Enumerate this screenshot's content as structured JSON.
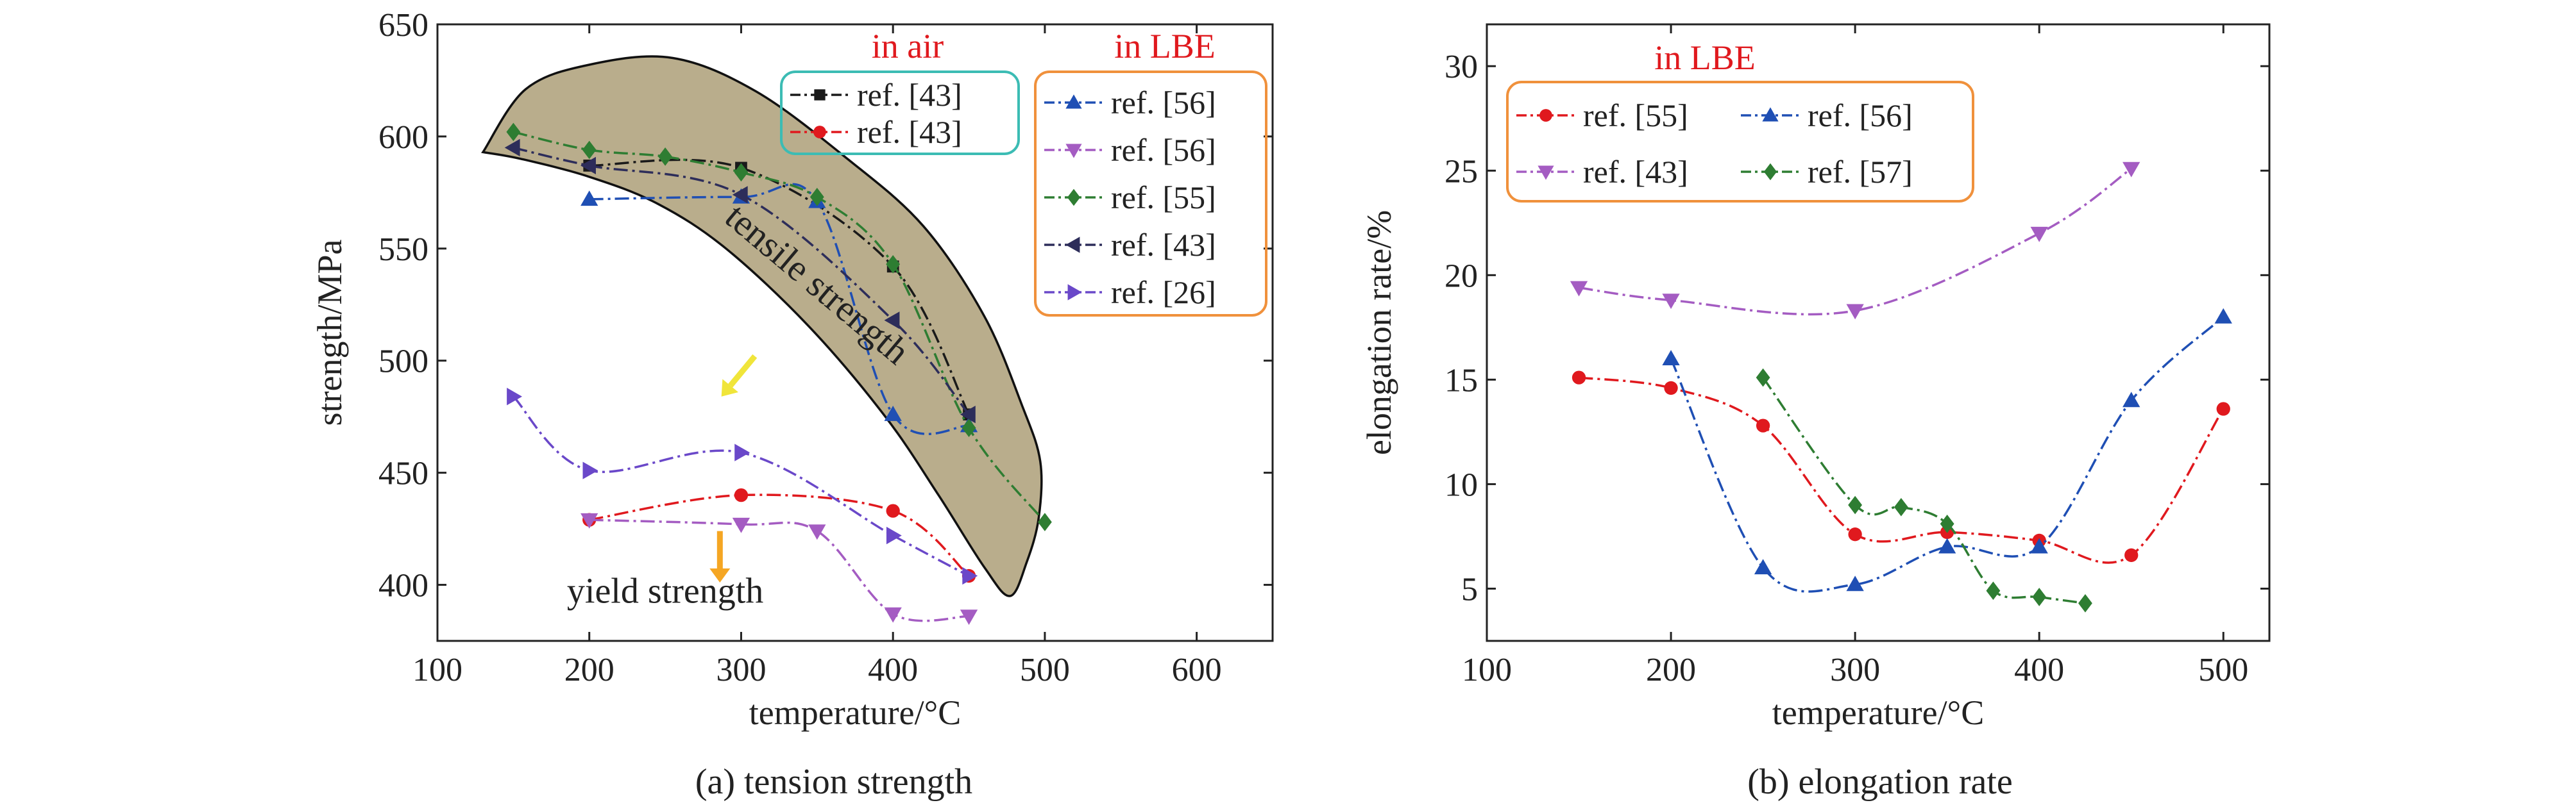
{
  "figure": {
    "panel_a_caption": "(a) tension strength",
    "panel_b_caption": "(b) elongation rate"
  },
  "chart_data": [
    {
      "type": "line",
      "caption": "(a) tension strength",
      "xlabel": "temperature/°C",
      "ylabel": "strength/MPa",
      "xlim": [
        100,
        650
      ],
      "ylim": [
        375,
        650
      ],
      "xticks": [
        100,
        200,
        300,
        400,
        500,
        600
      ],
      "yticks": [
        400,
        450,
        500,
        550,
        600,
        650
      ],
      "grid": false,
      "region": {
        "label": "tensile strength",
        "fill_color": "#b9ad8c",
        "outline": [
          [
            130,
            593
          ],
          [
            158,
            621
          ],
          [
            200,
            632
          ],
          [
            255,
            635
          ],
          [
            310,
            620
          ],
          [
            370,
            590
          ],
          [
            420,
            560
          ],
          [
            460,
            520
          ],
          [
            485,
            480
          ],
          [
            497,
            455
          ],
          [
            496,
            430
          ],
          [
            488,
            410
          ],
          [
            477,
            395
          ],
          [
            460,
            408
          ],
          [
            430,
            440
          ],
          [
            395,
            475
          ],
          [
            345,
            515
          ],
          [
            290,
            550
          ],
          [
            245,
            570
          ],
          [
            200,
            582
          ],
          [
            155,
            590
          ],
          [
            130,
            593
          ]
        ]
      },
      "annotations": [
        {
          "text": "tensile strength",
          "color": "#f0e53a",
          "arrow_from": [
            309,
            502
          ],
          "arrow_to": [
            287,
            484
          ]
        },
        {
          "text": "yield strength",
          "color": "#f5a623",
          "arrow_from": [
            286,
            424
          ],
          "arrow_to": [
            286,
            401
          ]
        }
      ],
      "legend_groups": [
        {
          "title": "in air",
          "title_color": "#e0191e",
          "box_color": "#3cbcb4",
          "placement": "top-center"
        },
        {
          "title": "in LBE",
          "title_color": "#e0191e",
          "box_color": "#f0913c",
          "placement": "top-right"
        }
      ],
      "series": [
        {
          "name": "ref. [43]",
          "group": "in air",
          "color": "#1a1a1a",
          "marker": "square",
          "x": [
            200,
            300,
            400,
            450
          ],
          "y": [
            587,
            586,
            542,
            476
          ]
        },
        {
          "name": "ref. [43]",
          "group": "in air",
          "color": "#e0191e",
          "marker": "circle",
          "x": [
            200,
            300,
            400,
            450
          ],
          "y": [
            429,
            440,
            433,
            404
          ]
        },
        {
          "name": "ref. [56]",
          "group": "in LBE",
          "color": "#1f4fb4",
          "marker": "triangle-up",
          "x": [
            200,
            300,
            350,
            400,
            450
          ],
          "y": [
            572,
            573,
            571,
            476,
            471
          ]
        },
        {
          "name": "ref. [56]",
          "group": "in LBE",
          "color": "#a45cc2",
          "marker": "triangle-down",
          "x": [
            200,
            300,
            350,
            400,
            450
          ],
          "y": [
            429,
            427,
            424,
            387,
            386
          ]
        },
        {
          "name": "ref. [55]",
          "group": "in LBE",
          "color": "#2e7d32",
          "marker": "diamond",
          "x": [
            150,
            200,
            250,
            300,
            350,
            400,
            450,
            500
          ],
          "y": [
            602,
            594,
            591,
            584,
            573,
            543,
            470,
            428
          ]
        },
        {
          "name": "ref. [43]",
          "group": "in LBE",
          "color": "#2d2d5a",
          "marker": "triangle-left",
          "x": [
            150,
            200,
            300,
            400,
            450
          ],
          "y": [
            595,
            587,
            574,
            518,
            476
          ]
        },
        {
          "name": "ref. [26]",
          "group": "in LBE",
          "color": "#6a48c9",
          "marker": "triangle-right",
          "x": [
            150,
            200,
            300,
            400,
            450
          ],
          "y": [
            484,
            451,
            459,
            422,
            404
          ]
        }
      ]
    },
    {
      "type": "line",
      "caption": "(b) elongation rate",
      "xlabel": "temperature/°C",
      "ylabel": "elongation rate/%",
      "xlim": [
        100,
        525
      ],
      "ylim": [
        2.5,
        32
      ],
      "xticks": [
        100,
        200,
        300,
        400,
        500
      ],
      "yticks": [
        5,
        10,
        15,
        20,
        25,
        30
      ],
      "grid": false,
      "legend_title": "in LBE",
      "legend_title_color": "#e0191e",
      "legend_box_color": "#f0913c",
      "legend_placement": "top-left",
      "series": [
        {
          "name": "ref. [55]",
          "color": "#e0191e",
          "marker": "circle",
          "x": [
            150,
            200,
            250,
            300,
            350,
            400,
            450,
            500
          ],
          "y": [
            15.1,
            14.6,
            12.8,
            7.6,
            7.7,
            7.3,
            6.6,
            13.6
          ]
        },
        {
          "name": "ref. [56]",
          "color": "#1f4fb4",
          "marker": "triangle-up",
          "x": [
            200,
            250,
            300,
            350,
            400,
            450,
            500
          ],
          "y": [
            16.0,
            6.0,
            5.2,
            7.0,
            7.0,
            14.0,
            18.0
          ]
        },
        {
          "name": "ref. [43]",
          "color": "#a45cc2",
          "marker": "triangle-down",
          "x": [
            150,
            200,
            300,
            400,
            450
          ],
          "y": [
            19.4,
            18.8,
            18.3,
            22.0,
            25.1
          ]
        },
        {
          "name": "ref. [57]",
          "color": "#2e7d32",
          "marker": "diamond",
          "x": [
            250,
            300,
            325,
            350,
            375,
            400,
            425
          ],
          "y": [
            15.1,
            9.0,
            8.9,
            8.1,
            4.9,
            4.6,
            4.3
          ]
        }
      ]
    }
  ]
}
